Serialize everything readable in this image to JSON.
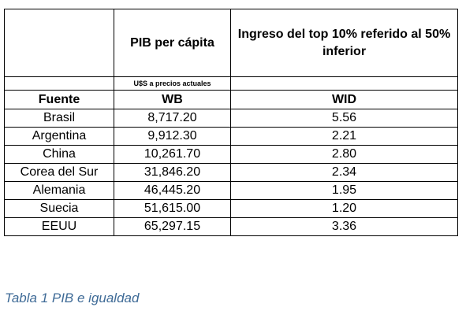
{
  "table": {
    "header": {
      "col1": "",
      "col2": "PIB per cápita",
      "col3": "Ingreso del top 10% referido al 50% inferior"
    },
    "units": {
      "col1": "",
      "col2": "U$S a precios actuales",
      "col3": ""
    },
    "source_row": {
      "col1": "Fuente",
      "col2": "WB",
      "col3": "WID"
    },
    "rows": [
      {
        "country": "Brasil",
        "gdp": "8,717.20",
        "ratio": "5.56"
      },
      {
        "country": "Argentina",
        "gdp": "9,912.30",
        "ratio": "2.21"
      },
      {
        "country": "China",
        "gdp": "10,261.70",
        "ratio": "2.80"
      },
      {
        "country": "Corea del Sur",
        "gdp": "31,846.20",
        "ratio": "2.34"
      },
      {
        "country": "Alemania",
        "gdp": "46,445.20",
        "ratio": "1.95"
      },
      {
        "country": "Suecia",
        "gdp": "51,615.00",
        "ratio": "1.20"
      },
      {
        "country": "EEUU",
        "gdp": "65,297.15",
        "ratio": "3.36"
      }
    ]
  },
  "caption": "Tabla 1 PIB e igualdad"
}
